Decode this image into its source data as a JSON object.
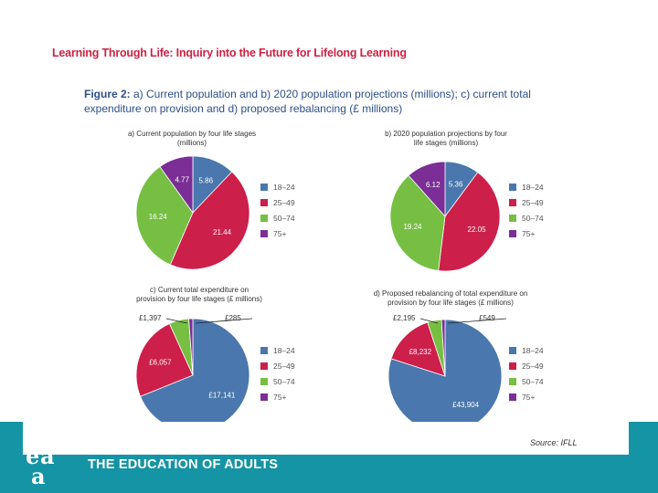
{
  "document": {
    "header_title": "Learning Through Life: Inquiry into the Future for Lifelong Learning",
    "figure_label": "Figure 2:",
    "figure_caption": " a) Current population and b) 2020 population projections (millions); c) current total expenditure on provision and d) proposed rebalancing (£ millions)",
    "source": "Source: IFLL"
  },
  "footer": {
    "organization": "THE EDUCATION OF ADULTS",
    "logo_text": "eaa",
    "band_color": "#1594a6"
  },
  "colors": {
    "18-24": "#4a77ad",
    "25-49": "#cc1f4a",
    "50-74": "#76bf43",
    "75+": "#7a2e96"
  },
  "chart_data": [
    {
      "type": "pie",
      "title_lines": [
        "a) Current population by four life stages",
        "(millions)"
      ],
      "categories": [
        "18–24",
        "25–49",
        "50–74",
        "75+"
      ],
      "values": [
        5.86,
        21.44,
        16.24,
        4.77
      ],
      "value_labels": [
        "5.86",
        "21.44",
        "16.24",
        "4.77"
      ],
      "legend_placement": "right"
    },
    {
      "type": "pie",
      "title_lines": [
        "b) 2020 population projections by four",
        "life stages (millions)"
      ],
      "categories": [
        "18–24",
        "25–49",
        "50–74",
        "75+"
      ],
      "values": [
        5.36,
        22.05,
        19.24,
        6.12
      ],
      "value_labels": [
        "5.36",
        "22.05",
        "19.24",
        "6.12"
      ],
      "legend_placement": "right"
    },
    {
      "type": "pie",
      "title_lines": [
        "c) Current total expenditure on",
        "provision by four life stages (£ millions)"
      ],
      "categories": [
        "18–24",
        "25–49",
        "50–74",
        "75+"
      ],
      "values": [
        17141,
        6057,
        1397,
        285
      ],
      "value_labels": [
        "£17,141",
        "£6,057",
        "£1,397",
        "£285"
      ],
      "legend_placement": "right"
    },
    {
      "type": "pie",
      "title_lines": [
        "d) Proposed rebalancing of total expenditure on",
        "provision by four life stages (£ millions)"
      ],
      "categories": [
        "18–24",
        "25–49",
        "50–74",
        "75+"
      ],
      "values": [
        43904,
        8232,
        2195,
        549
      ],
      "value_labels": [
        "£43,904",
        "£8,232",
        "£2,195",
        "£549"
      ],
      "legend_placement": "right"
    }
  ]
}
